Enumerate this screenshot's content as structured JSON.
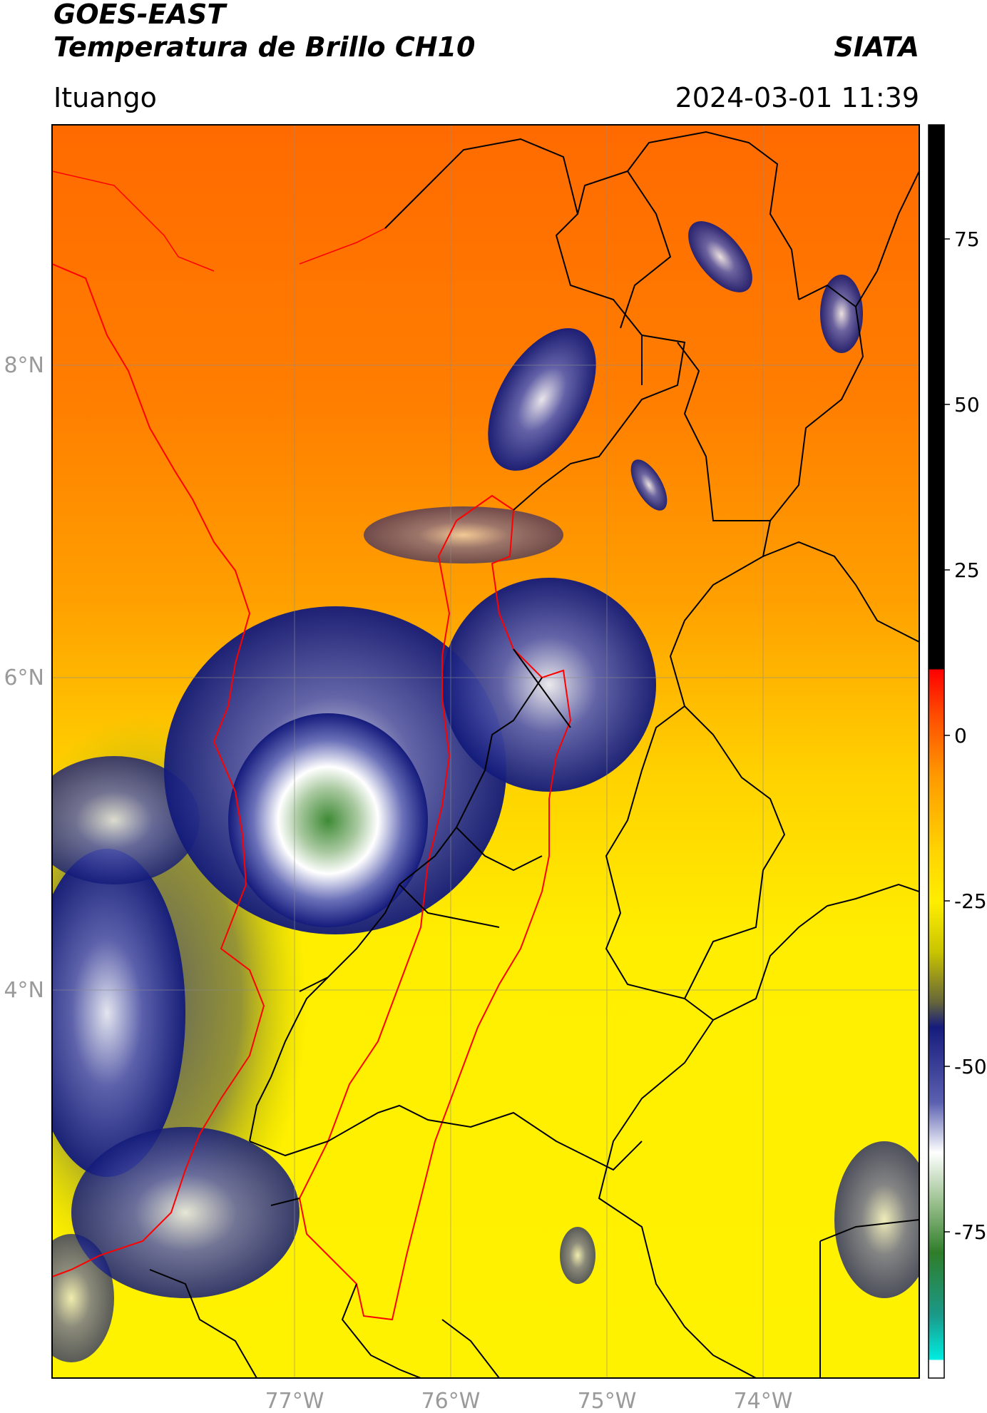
{
  "header": {
    "satellite": "GOES-EAST",
    "product": "Temperatura de Brillo CH10",
    "brand": "SIATA",
    "location": "Ituango",
    "timestamp": "2024-03-01 11:39"
  },
  "map": {
    "lon_ticks": [
      "77°W",
      "76°W",
      "75°W",
      "74°W"
    ],
    "lat_ticks": [
      "8°N",
      "6°N",
      "4°N"
    ]
  },
  "colorbar": {
    "ticks": [
      "75",
      "50",
      "25",
      "0",
      "-25",
      "-50",
      "-75"
    ],
    "colors": {
      "hot": "#000000",
      "warm": "#ff0000",
      "mid": "#ff8c00",
      "yellow": "#ffee00",
      "navy": "#121a7a",
      "white": "#ffffff",
      "green": "#2f7d2a",
      "cyan": "#00e6dc"
    }
  }
}
